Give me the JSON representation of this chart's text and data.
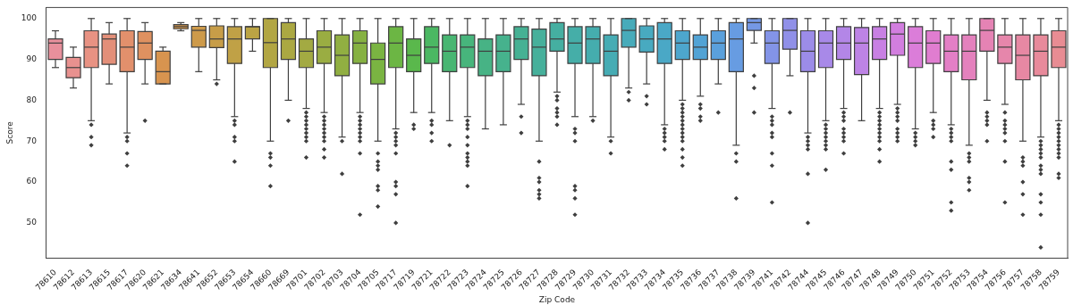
{
  "chart_data": {
    "type": "box",
    "xlabel": "Zip Code",
    "ylabel": "Score",
    "marker": "diamond",
    "ylim": [
      41.4,
      102.7
    ],
    "yticks": [
      50,
      60,
      70,
      80,
      90,
      100
    ],
    "categories": [
      "78610",
      "78612",
      "78613",
      "78615",
      "78617",
      "78620",
      "78621",
      "78634",
      "78641",
      "78652",
      "78653",
      "78654",
      "78660",
      "78669",
      "78701",
      "78702",
      "78703",
      "78704",
      "78705",
      "78717",
      "78719",
      "78721",
      "78722",
      "78723",
      "78724",
      "78725",
      "78726",
      "78727",
      "78728",
      "78729",
      "78730",
      "78731",
      "78732",
      "78733",
      "78734",
      "78735",
      "78736",
      "78737",
      "78738",
      "78739",
      "78741",
      "78742",
      "78744",
      "78745",
      "78746",
      "78747",
      "78748",
      "78749",
      "78750",
      "78751",
      "78752",
      "78753",
      "78754",
      "78756",
      "78757",
      "78758",
      "78759"
    ],
    "colors": [
      "#e8909c",
      "#e8918f",
      "#e89283",
      "#e38f79",
      "#e2906c",
      "#df9160",
      "#d8944f",
      "#d3974d",
      "#cd9a4a",
      "#c79d48",
      "#c0a146",
      "#bba444",
      "#b2a643",
      "#aba842",
      "#a3aa42",
      "#9aad42",
      "#91af42",
      "#86b142",
      "#7ab442",
      "#6cb644",
      "#5ab84c",
      "#4bb863",
      "#48b672",
      "#47b57c",
      "#47b385",
      "#46b28d",
      "#46b194",
      "#46b09b",
      "#45afa1",
      "#45aea8",
      "#45adae",
      "#46acb4",
      "#47abba",
      "#48aac0",
      "#4aa8c6",
      "#4da6cd",
      "#52a3d5",
      "#5aa0dc",
      "#679ce2",
      "#7598e5",
      "#8394e7",
      "#9090e8",
      "#9c8ce8",
      "#a889e8",
      "#b386e7",
      "#bd83e5",
      "#c880e3",
      "#d27edf",
      "#db7dd9",
      "#e07dd0",
      "#e37fc6",
      "#e481bd",
      "#e583b4",
      "#e686ab",
      "#e788a3",
      "#e88a9b",
      "#e88c93"
    ],
    "boxes": [
      {
        "low": 88,
        "q1": 90,
        "median": 94,
        "q3": 95,
        "high": 97
      },
      {
        "low": 83,
        "q1": 85.5,
        "median": 88,
        "q3": 90.5,
        "high": 93
      },
      {
        "low": 75,
        "q1": 88,
        "median": 93,
        "q3": 97,
        "high": 100,
        "outliers": [
          74,
          71,
          69
        ]
      },
      {
        "low": 84,
        "q1": 88.8,
        "median": 95,
        "q3": 96.2,
        "high": 99
      },
      {
        "low": 72,
        "q1": 87,
        "median": 93,
        "q3": 97,
        "high": 100,
        "outliers": [
          71,
          70,
          67,
          64
        ]
      },
      {
        "low": 84,
        "q1": 90,
        "median": 94,
        "q3": 96.8,
        "high": 99,
        "outliers": [
          75
        ]
      },
      {
        "low": 84,
        "q1": 84,
        "median": 87,
        "q3": 92,
        "high": 93
      },
      {
        "low": 97,
        "q1": 97.5,
        "median": 98,
        "q3": 98.5,
        "high": 99
      },
      {
        "low": 87,
        "q1": 93,
        "median": 97.1,
        "q3": 98.1,
        "high": 100
      },
      {
        "low": 85,
        "q1": 92.9,
        "median": 95,
        "q3": 98.2,
        "high": 100,
        "outliers": [
          84
        ]
      },
      {
        "low": 76,
        "q1": 89,
        "median": 95,
        "q3": 98,
        "high": 100,
        "outliers": [
          75,
          74,
          71,
          70,
          65
        ]
      },
      {
        "low": 92,
        "q1": 95,
        "median": 98,
        "q3": 98,
        "high": 100
      },
      {
        "low": 70,
        "q1": 88,
        "median": 94.1,
        "q3": 100,
        "high": 100,
        "outliers": [
          67,
          66,
          64,
          59
        ]
      },
      {
        "low": 80,
        "q1": 90,
        "median": 95,
        "q3": 99,
        "high": 100,
        "outliers": [
          75
        ]
      },
      {
        "low": 78,
        "q1": 88,
        "median": 92,
        "q3": 95,
        "high": 100,
        "outliers": [
          77,
          76,
          75,
          74,
          73,
          72,
          71,
          70,
          66
        ]
      },
      {
        "low": 77,
        "q1": 89,
        "median": 93,
        "q3": 97,
        "high": 100,
        "outliers": [
          76,
          75,
          74,
          73,
          72,
          71,
          70,
          68,
          66
        ]
      },
      {
        "low": 71,
        "q1": 86,
        "median": 91,
        "q3": 96,
        "high": 100,
        "outliers": [
          70,
          62
        ]
      },
      {
        "low": 77,
        "q1": 89,
        "median": 94,
        "q3": 97,
        "high": 100,
        "outliers": [
          76,
          75,
          74,
          73,
          72,
          71,
          70,
          67,
          52
        ]
      },
      {
        "low": 70,
        "q1": 84,
        "median": 90,
        "q3": 94,
        "high": 100,
        "outliers": [
          67,
          65,
          64,
          63,
          59,
          58,
          54
        ]
      },
      {
        "low": 73,
        "q1": 88,
        "median": 94,
        "q3": 98,
        "high": 100,
        "outliers": [
          72,
          71,
          70,
          69,
          67,
          60,
          59,
          57,
          50
        ]
      },
      {
        "low": 77,
        "q1": 87,
        "median": 91,
        "q3": 95,
        "high": 100,
        "outliers": [
          74,
          73
        ]
      },
      {
        "low": 77,
        "q1": 89,
        "median": 93,
        "q3": 98,
        "high": 100,
        "outliers": [
          75,
          74,
          72,
          70
        ]
      },
      {
        "low": 75,
        "q1": 87,
        "median": 92,
        "q3": 96,
        "high": 100,
        "outliers": [
          69
        ]
      },
      {
        "low": 76,
        "q1": 88,
        "median": 93,
        "q3": 96,
        "high": 100,
        "outliers": [
          75,
          74,
          73,
          71,
          69,
          67,
          66,
          65,
          64,
          59
        ]
      },
      {
        "low": 73,
        "q1": 86,
        "median": 92,
        "q3": 95,
        "high": 100
      },
      {
        "low": 74,
        "q1": 87,
        "median": 92,
        "q3": 96,
        "high": 100
      },
      {
        "low": 79,
        "q1": 90,
        "median": 95,
        "q3": 98,
        "high": 100,
        "outliers": [
          76,
          72
        ]
      },
      {
        "low": 70,
        "q1": 86,
        "median": 93,
        "q3": 97.4,
        "high": 100,
        "outliers": [
          65,
          61,
          60,
          58,
          57,
          56
        ]
      },
      {
        "low": 82,
        "q1": 92,
        "median": 95,
        "q3": 99,
        "high": 100,
        "outliers": [
          81,
          80,
          78,
          77,
          76,
          74
        ]
      },
      {
        "low": 76,
        "q1": 89,
        "median": 94,
        "q3": 98,
        "high": 100,
        "outliers": [
          73,
          72,
          70,
          59,
          58,
          56,
          52
        ]
      },
      {
        "low": 76,
        "q1": 89,
        "median": 95,
        "q3": 98,
        "high": 100,
        "outliers": [
          75
        ]
      },
      {
        "low": 71,
        "q1": 86,
        "median": 92,
        "q3": 96,
        "high": 100,
        "outliers": [
          70,
          67
        ]
      },
      {
        "low": 83,
        "q1": 93,
        "median": 97.1,
        "q3": 100,
        "high": 100,
        "outliers": [
          82,
          80
        ]
      },
      {
        "low": 84,
        "q1": 91.8,
        "median": 95,
        "q3": 98.2,
        "high": 100,
        "outliers": [
          81,
          79
        ]
      },
      {
        "low": 74,
        "q1": 89,
        "median": 95,
        "q3": 99,
        "high": 100,
        "outliers": [
          73,
          72,
          71,
          70,
          68
        ]
      },
      {
        "low": 80,
        "q1": 90,
        "median": 94,
        "q3": 97,
        "high": 100,
        "outliers": [
          79,
          78,
          77,
          76,
          75,
          74,
          73,
          72,
          71,
          70,
          68,
          66,
          64
        ]
      },
      {
        "low": 81,
        "q1": 90,
        "median": 93,
        "q3": 96,
        "high": 100,
        "outliers": [
          79,
          78,
          76,
          75
        ]
      },
      {
        "low": 84,
        "q1": 90,
        "median": 94,
        "q3": 97,
        "high": 100,
        "outliers": [
          77
        ]
      },
      {
        "low": 69,
        "q1": 87,
        "median": 95,
        "q3": 99,
        "high": 100,
        "outliers": [
          67,
          65,
          56
        ]
      },
      {
        "low": 94,
        "q1": 97.1,
        "median": 99,
        "q3": 100,
        "high": 100,
        "outliers": [
          86,
          83,
          77
        ]
      },
      {
        "low": 78,
        "q1": 89,
        "median": 94,
        "q3": 97,
        "high": 100,
        "outliers": [
          76,
          75,
          74,
          72,
          71,
          67,
          64,
          55
        ]
      },
      {
        "low": 86,
        "q1": 92.5,
        "median": 97.1,
        "q3": 100,
        "high": 100,
        "outliers": [
          77
        ]
      },
      {
        "low": 72,
        "q1": 87,
        "median": 92,
        "q3": 97,
        "high": 100,
        "outliers": [
          71,
          70,
          69,
          68,
          62,
          50
        ]
      },
      {
        "low": 75,
        "q1": 88,
        "median": 94,
        "q3": 97,
        "high": 100,
        "outliers": [
          74,
          73,
          72,
          71,
          70,
          69,
          68,
          63
        ]
      },
      {
        "low": 78,
        "q1": 90,
        "median": 94,
        "q3": 98,
        "high": 100,
        "outliers": [
          77,
          76,
          75,
          73,
          72,
          71,
          70,
          67
        ]
      },
      {
        "low": 75,
        "q1": 86.3,
        "median": 94,
        "q3": 97.8,
        "high": 100
      },
      {
        "low": 78,
        "q1": 90,
        "median": 95,
        "q3": 98,
        "high": 100,
        "outliers": [
          77,
          76,
          75,
          74,
          73,
          72,
          71,
          70,
          68,
          65
        ]
      },
      {
        "low": 79,
        "q1": 91,
        "median": 96.2,
        "q3": 99,
        "high": 100,
        "outliers": [
          78,
          77,
          76,
          75,
          73,
          72,
          71,
          70
        ]
      },
      {
        "low": 73,
        "q1": 88,
        "median": 94,
        "q3": 98,
        "high": 100,
        "outliers": [
          72,
          71,
          70,
          69
        ]
      },
      {
        "low": 77,
        "q1": 89,
        "median": 94,
        "q3": 97,
        "high": 100,
        "outliers": [
          75,
          74,
          73,
          71
        ]
      },
      {
        "low": 74,
        "q1": 87,
        "median": 92,
        "q3": 96,
        "high": 100,
        "outliers": [
          73,
          72,
          71,
          70,
          65,
          63,
          55,
          53
        ]
      },
      {
        "low": 69,
        "q1": 85,
        "median": 92,
        "q3": 96,
        "high": 100,
        "outliers": [
          67,
          66,
          65,
          61,
          60,
          58
        ]
      },
      {
        "low": 80,
        "q1": 92,
        "median": 97.1,
        "q3": 100,
        "high": 100,
        "outliers": [
          77,
          76,
          75,
          74,
          70
        ]
      },
      {
        "low": 79,
        "q1": 89,
        "median": 93,
        "q3": 96,
        "high": 100,
        "outliers": [
          77,
          75,
          74,
          73,
          72,
          70,
          65,
          55
        ]
      },
      {
        "low": 70,
        "q1": 85,
        "median": 91,
        "q3": 96,
        "high": 100,
        "outliers": [
          66,
          65,
          64,
          60,
          57,
          52
        ]
      },
      {
        "low": 71,
        "q1": 86,
        "median": 92,
        "q3": 96,
        "high": 100,
        "outliers": [
          70,
          69,
          68,
          67,
          66,
          64,
          63,
          62,
          57,
          55,
          52,
          44
        ]
      },
      {
        "low": 75,
        "q1": 88,
        "median": 93,
        "q3": 97,
        "high": 100,
        "outliers": [
          74,
          73,
          72,
          71,
          70,
          69,
          68,
          67,
          66,
          62,
          61
        ]
      }
    ]
  }
}
